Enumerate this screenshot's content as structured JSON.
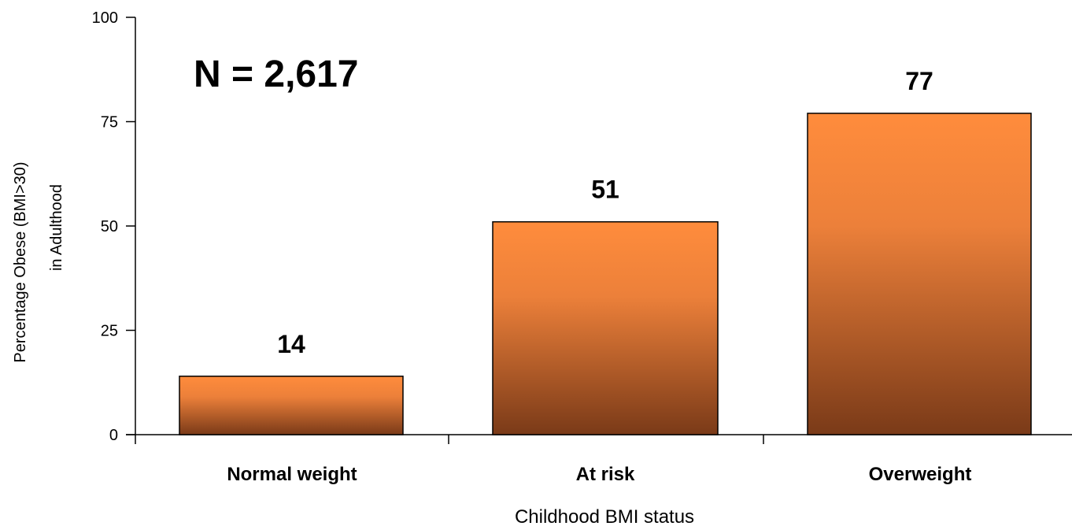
{
  "chart_data": {
    "type": "bar",
    "categories": [
      "Normal weight",
      "At risk",
      "Overweight"
    ],
    "values": [
      14,
      51,
      77
    ],
    "data_labels": [
      "14",
      "51",
      "77"
    ],
    "xlabel": "Childhood BMI status",
    "ylabel_lines": [
      "Percentage Obese (BMI>30)",
      "in Adulthood"
    ],
    "ylim": [
      0,
      100
    ],
    "yticks": [
      0,
      25,
      50,
      75,
      100
    ],
    "annotation": "N = 2,617",
    "grid": false,
    "legend": "none",
    "colors": {
      "bar_top": "#ff8c3c",
      "bar_bottom": "#7a3a18",
      "bar_outline": "#000000",
      "axis": "#000000"
    }
  }
}
